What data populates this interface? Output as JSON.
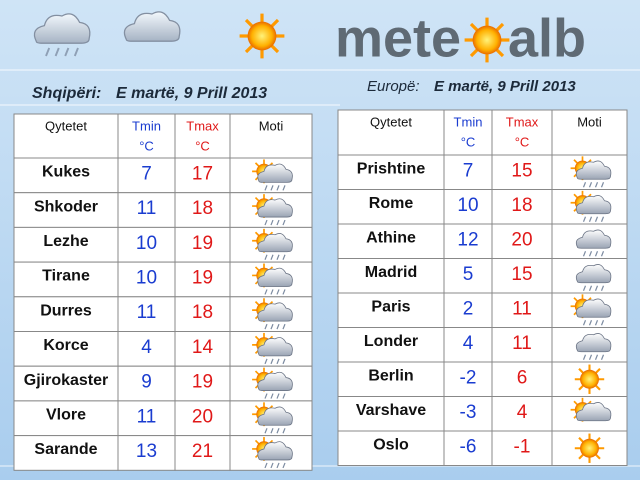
{
  "header": {
    "logo_left": "mete",
    "logo_right": "alb"
  },
  "albania": {
    "label": "Shqipëri:",
    "date": "E martë, 9 Prill 2013",
    "table": {
      "columns": {
        "city": "Qytetet",
        "tmin": "Tmin",
        "tmin_unit": "°C",
        "tmax": "Tmax",
        "tmax_unit": "°C",
        "weather": "Moti"
      },
      "rows": [
        [
          "Kukes",
          7,
          17
        ],
        [
          "Shkoder",
          11,
          18
        ],
        [
          "Lezhe",
          10,
          19
        ],
        [
          "Tirane",
          10,
          19
        ],
        [
          "Durres",
          11,
          18
        ],
        [
          "Korce",
          4,
          14
        ],
        [
          "Gjirokaster",
          9,
          19
        ],
        [
          "Vlore",
          11,
          20
        ],
        [
          "Sarande",
          13,
          21
        ]
      ]
    }
  },
  "europe": {
    "label": "Europë:",
    "date": "E martë, 9 Prill 2013",
    "table": {
      "columns": {
        "city": "Qytetet",
        "tmin": "Tmin",
        "tmin_unit": "°C",
        "tmax": "Tmax",
        "tmax_unit": "°C",
        "weather": "Moti"
      },
      "rows": [
        [
          "Prishtine",
          7,
          15
        ],
        [
          "Rome",
          10,
          18
        ],
        [
          "Athine",
          12,
          20
        ],
        [
          "Madrid",
          5,
          15
        ],
        [
          "Paris",
          2,
          11
        ],
        [
          "Londer",
          4,
          11
        ],
        [
          "Berlin",
          -2,
          6
        ],
        [
          "Varshave",
          -3,
          4
        ],
        [
          "Oslo",
          -6,
          -1
        ]
      ]
    }
  }
}
